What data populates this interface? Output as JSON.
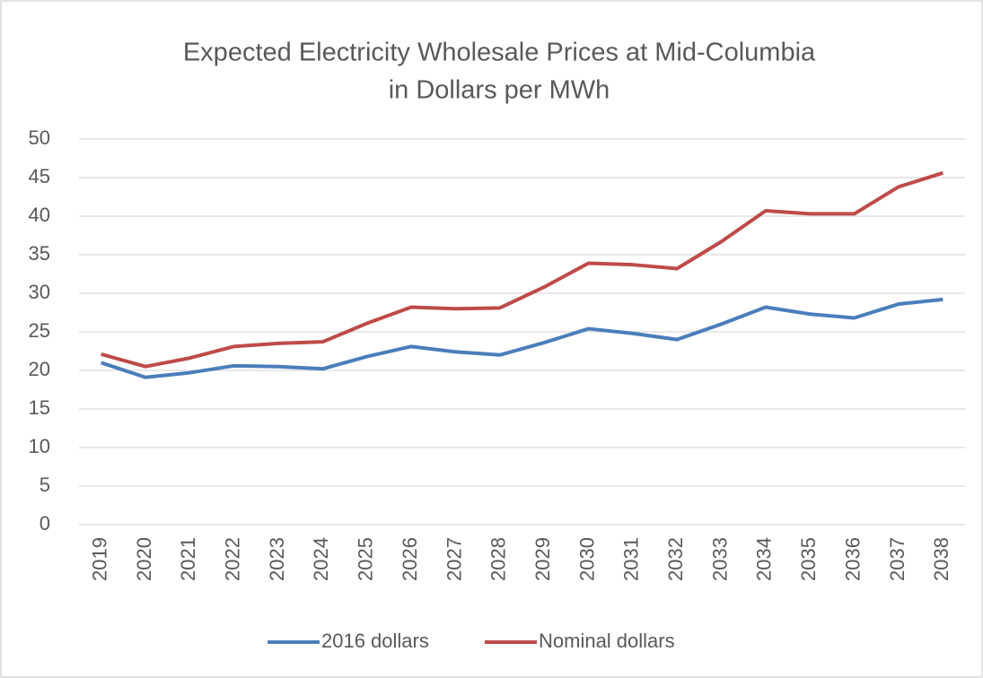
{
  "chart_data": {
    "type": "line",
    "title": [
      "Expected Electricity Wholesale Prices at Mid-Columbia",
      "in Dollars per MWh"
    ],
    "categories": [
      "2019",
      "2020",
      "2021",
      "2022",
      "2023",
      "2024",
      "2025",
      "2026",
      "2027",
      "2028",
      "2029",
      "2030",
      "2031",
      "2032",
      "2033",
      "2034",
      "2035",
      "2036",
      "2037",
      "2038"
    ],
    "series": [
      {
        "name": "2016 dollars",
        "color": "#4a7ebb",
        "values": [
          21.0,
          19.1,
          19.7,
          20.6,
          20.5,
          20.2,
          21.8,
          23.1,
          22.4,
          22.0,
          23.6,
          25.4,
          24.8,
          24.0,
          26.0,
          28.2,
          27.3,
          26.8,
          28.6,
          29.2
        ]
      },
      {
        "name": "Nominal dollars",
        "color": "#be4b48",
        "values": [
          22.1,
          20.5,
          21.6,
          23.1,
          23.5,
          23.7,
          26.1,
          28.2,
          28.0,
          28.1,
          30.8,
          33.9,
          33.7,
          33.2,
          36.7,
          40.7,
          40.3,
          40.3,
          43.8,
          45.6
        ]
      }
    ],
    "ylim": [
      0,
      50
    ],
    "yticks": [
      0,
      5,
      10,
      15,
      20,
      25,
      30,
      35,
      40,
      45,
      50
    ],
    "grid": true,
    "legend": "bottom"
  }
}
